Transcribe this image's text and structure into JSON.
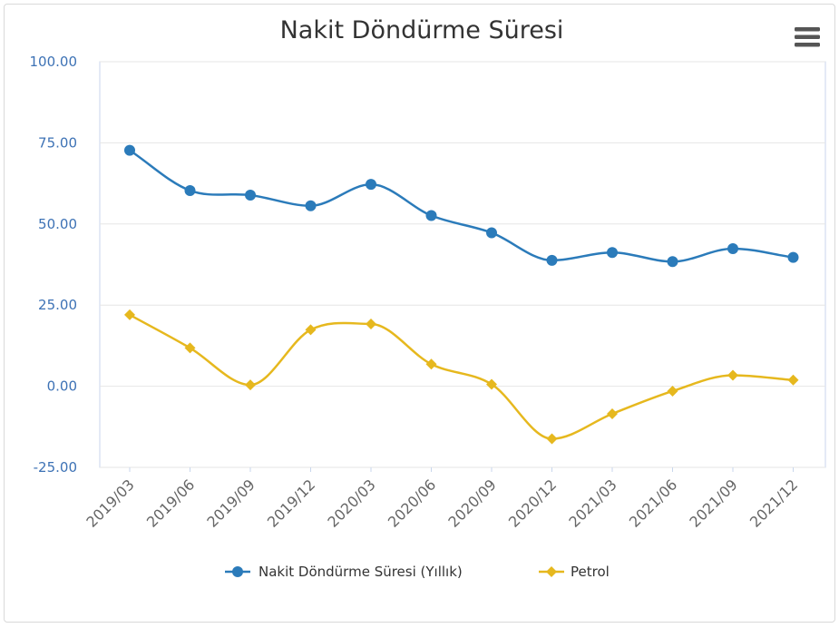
{
  "chart_data": {
    "type": "line",
    "title": "Nakit Döndürme Süresi",
    "xlabel": "",
    "ylabel": "",
    "categories": [
      "2019/03",
      "2019/06",
      "2019/09",
      "2019/12",
      "2020/03",
      "2020/06",
      "2020/09",
      "2020/12",
      "2021/03",
      "2021/06",
      "2021/09",
      "2021/12"
    ],
    "ylim": [
      -25,
      100
    ],
    "yticks": [
      "100.00",
      "75.00",
      "50.00",
      "25.00",
      "0.00",
      "-25.00"
    ],
    "grid": true,
    "legend_position": "bottom",
    "series": [
      {
        "name": "Nakit Döndürme Süresi (Yıllık)",
        "color": "#2b7bba",
        "marker": "circle",
        "values": [
          72.7,
          60.3,
          58.9,
          55.6,
          62.2,
          52.6,
          47.3,
          38.8,
          41.2,
          38.4,
          42.4,
          39.7
        ]
      },
      {
        "name": "Petrol",
        "color": "#e6b81e",
        "marker": "diamond",
        "values": [
          22.0,
          11.8,
          0.4,
          17.4,
          19.2,
          6.8,
          0.6,
          -16.2,
          -8.5,
          -1.5,
          3.4,
          1.9
        ]
      }
    ]
  },
  "menu_icon": "hamburger-menu-icon"
}
